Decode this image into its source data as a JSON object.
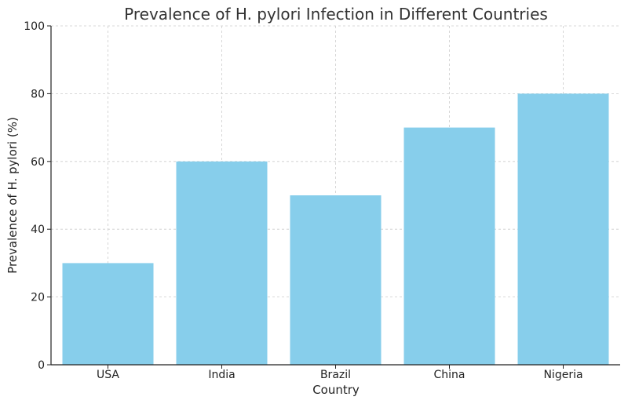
{
  "chart_data": {
    "type": "bar",
    "title": "Prevalence of H. pylori Infection in Different Countries",
    "xlabel": "Country",
    "ylabel": "Prevalence of H. pylori (%)",
    "categories": [
      "USA",
      "India",
      "Brazil",
      "China",
      "Nigeria"
    ],
    "values": [
      30,
      60,
      50,
      70,
      80
    ],
    "ylim": [
      0,
      100
    ],
    "yticks": [
      0,
      20,
      40,
      60,
      80,
      100
    ],
    "grid": true,
    "bar_color": "#87CEEB"
  }
}
